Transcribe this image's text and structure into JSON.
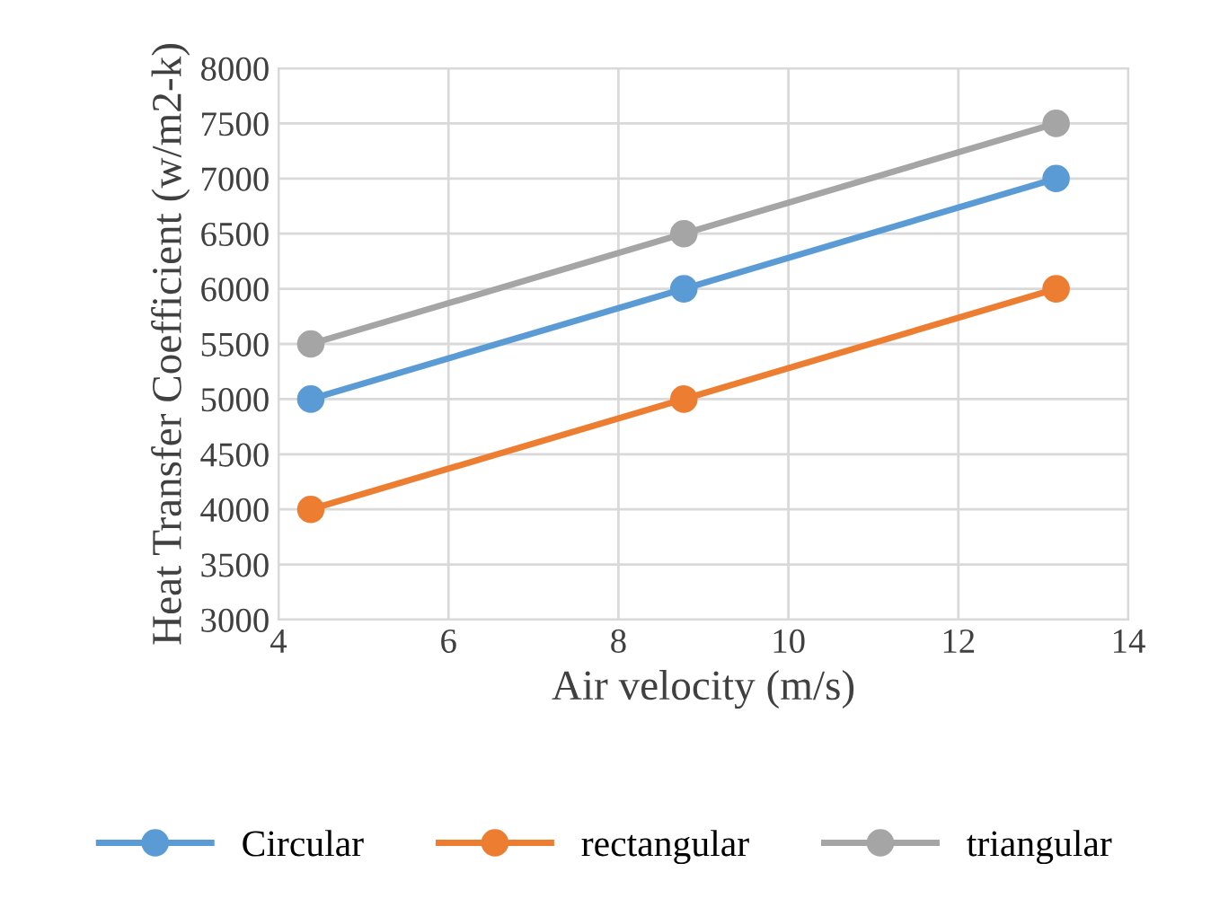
{
  "chart_data": {
    "type": "line",
    "xlabel": "Air velocity (m/s)",
    "ylabel": "Heat Transfer Coefficient (w/m2-k)",
    "x": [
      4.38,
      8.77,
      13.15
    ],
    "series": [
      {
        "name": "Circular",
        "color": "#5b9bd5",
        "values": [
          5000,
          6000,
          7000
        ]
      },
      {
        "name": "rectangular",
        "color": "#ed7d31",
        "values": [
          4000,
          5000,
          6000
        ]
      },
      {
        "name": "triangular",
        "color": "#a5a5a5",
        "values": [
          5500,
          6500,
          7500
        ]
      }
    ],
    "xlim": [
      4,
      14
    ],
    "xticks": [
      4,
      6,
      8,
      10,
      12,
      14
    ],
    "ylim": [
      3000,
      8000
    ],
    "yticks": [
      3000,
      3500,
      4000,
      4500,
      5000,
      5500,
      6000,
      6500,
      7000,
      7500,
      8000
    ],
    "grid": true,
    "legend": "bottom",
    "marker": "circle",
    "line_style": "solid"
  }
}
